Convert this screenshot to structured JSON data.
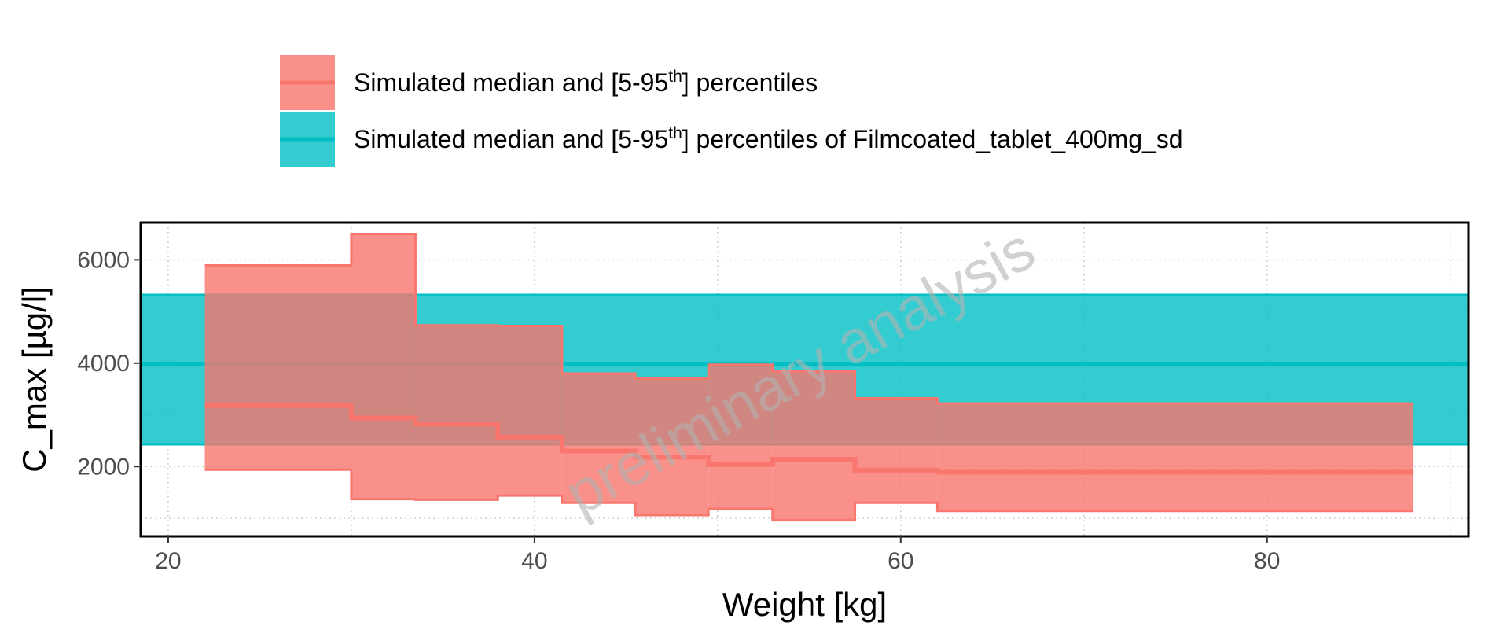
{
  "chart_data": {
    "type": "area",
    "xlabel": "Weight [kg]",
    "ylabel": "C_max [µg/l]",
    "xlim": [
      18.5,
      91
    ],
    "ylim": [
      650,
      6720
    ],
    "xticks": [
      20,
      40,
      60,
      80
    ],
    "yticks": [
      2000,
      4000,
      6000
    ],
    "grid": true,
    "legend_position": "top",
    "watermark": "preliminary analysis",
    "legend": [
      {
        "prefix": "Simulated median and [5-95",
        "sup": "th",
        "suffix": "] percentiles"
      },
      {
        "prefix": "Simulated median and [5-95",
        "sup": "th",
        "suffix": "] percentiles of Filmcoated_tablet_400mg_sd"
      }
    ],
    "colors": {
      "simulated": "#F8766D",
      "reference": "#00BFC4"
    },
    "reference_band": {
      "median": 3980,
      "p5": 2430,
      "p95": 5320
    },
    "series": [
      {
        "bins": [
          {
            "x0": 22.0,
            "x1": 30.0,
            "median": 3180,
            "p5": 1940,
            "p95": 5890
          },
          {
            "x0": 30.0,
            "x1": 33.5,
            "median": 2940,
            "p5": 1370,
            "p95": 6500
          },
          {
            "x0": 33.5,
            "x1": 38.0,
            "median": 2820,
            "p5": 1360,
            "p95": 4730
          },
          {
            "x0": 38.0,
            "x1": 41.5,
            "median": 2570,
            "p5": 1440,
            "p95": 4720
          },
          {
            "x0": 41.5,
            "x1": 45.5,
            "median": 2300,
            "p5": 1300,
            "p95": 3800
          },
          {
            "x0": 45.5,
            "x1": 49.5,
            "median": 2180,
            "p5": 1060,
            "p95": 3700
          },
          {
            "x0": 49.5,
            "x1": 53.0,
            "median": 2040,
            "p5": 1180,
            "p95": 3970
          },
          {
            "x0": 53.0,
            "x1": 57.5,
            "median": 2140,
            "p5": 960,
            "p95": 3840
          },
          {
            "x0": 57.5,
            "x1": 62.0,
            "median": 1930,
            "p5": 1300,
            "p95": 3320
          },
          {
            "x0": 62.0,
            "x1": 88.0,
            "median": 1890,
            "p5": 1140,
            "p95": 3220
          }
        ]
      }
    ]
  }
}
